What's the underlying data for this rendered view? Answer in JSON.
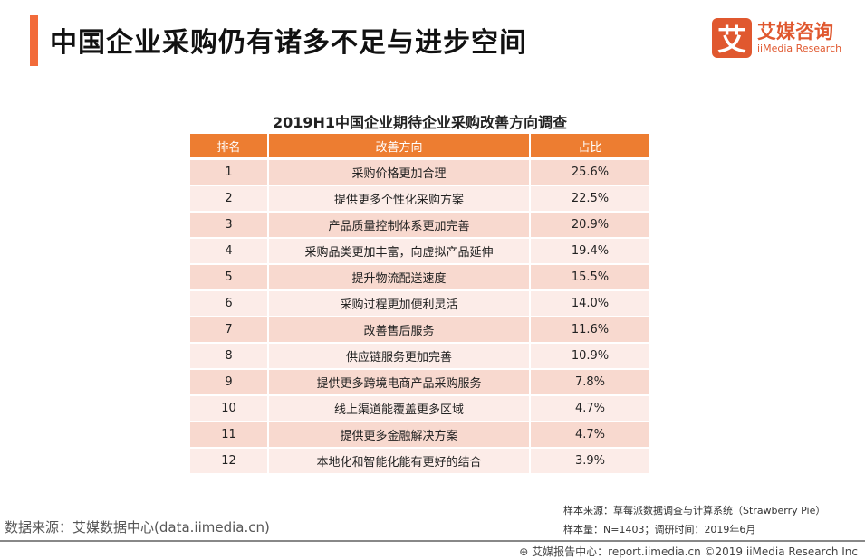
{
  "header": {
    "title": "中国企业采购仍有诸多不足与进步空间",
    "logo_mark": "艾",
    "logo_cn": "艾媒咨询",
    "logo_en": "iiMedia Research"
  },
  "table": {
    "title": "2019H1中国企业期待企业采购改善方向调查",
    "columns": [
      "排名",
      "改善方向",
      "占比"
    ],
    "rows": [
      [
        "1",
        "采购价格更加合理",
        "25.6%"
      ],
      [
        "2",
        "提供更多个性化采购方案",
        "22.5%"
      ],
      [
        "3",
        "产品质量控制体系更加完善",
        "20.9%"
      ],
      [
        "4",
        "采购品类更加丰富，向虚拟产品延伸",
        "19.4%"
      ],
      [
        "5",
        "提升物流配送速度",
        "15.5%"
      ],
      [
        "6",
        "采购过程更加便利灵活",
        "14.0%"
      ],
      [
        "7",
        "改善售后服务",
        "11.6%"
      ],
      [
        "8",
        "供应链服务更加完善",
        "10.9%"
      ],
      [
        "9",
        "提供更多跨境电商产品采购服务",
        "7.8%"
      ],
      [
        "10",
        "线上渠道能覆盖更多区域",
        "4.7%"
      ],
      [
        "11",
        "提供更多金融解决方案",
        "4.7%"
      ],
      [
        "12",
        "本地化和智能化能有更好的结合",
        "3.9%"
      ]
    ]
  },
  "footer": {
    "source": "数据来源：艾媒数据中心(data.iimedia.cn)",
    "sample_source": "样本来源：草莓派数据调查与计算系统（Strawberry Pie）",
    "sample_size": "样本量：N=1403；调研时间：2019年6月",
    "copyright": "艾媒报告中心：report.iimedia.cn   ©2019  iiMedia Research Inc"
  },
  "colors": {
    "accent": "#ed7d31",
    "row_odd": "#f8d9cf",
    "row_even": "#fcece8"
  }
}
